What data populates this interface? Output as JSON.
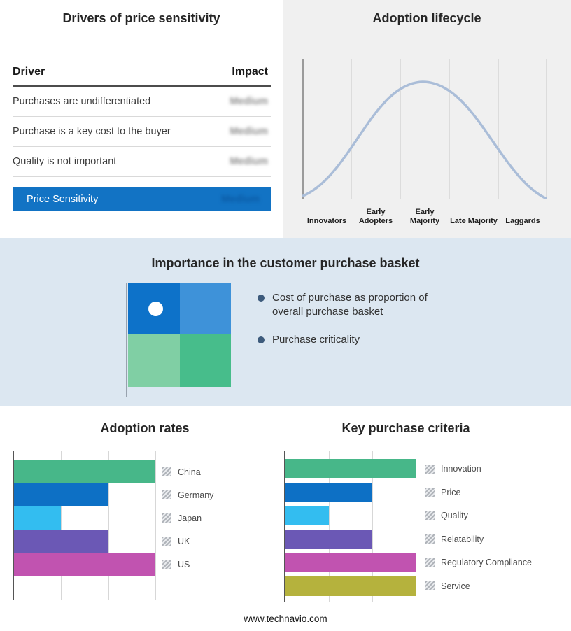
{
  "page": {
    "footer_url": "www.technavio.com"
  },
  "colors": {
    "accent_blue": "#1273c4",
    "band_background": "#dce7f1",
    "lifecycle_curve": "#aabdd8",
    "bullet_dot": "#3d5b7c"
  },
  "drivers_table": {
    "title": "Drivers of price sensitivity",
    "columns": {
      "driver": "Driver",
      "impact": "Impact"
    },
    "rows": [
      {
        "driver": "Purchases are undifferentiated",
        "impact": "Medium"
      },
      {
        "driver": "Purchase is a key cost to the buyer",
        "impact": "Medium"
      },
      {
        "driver": "Quality is not important",
        "impact": "Medium"
      }
    ],
    "summary": {
      "label": "Price Sensitivity",
      "impact": "Medium"
    }
  },
  "adoption_lifecycle": {
    "title": "Adoption lifecycle",
    "stages": [
      "Innovators",
      "Early Adopters",
      "Early Majority",
      "Late Majority",
      "Laggards"
    ]
  },
  "purchase_basket": {
    "title": "Importance in the customer purchase basket",
    "bullets": [
      "Cost of purchase as proportion of overall purchase basket",
      "Purchase criticality"
    ],
    "quadrant_colors": [
      "#0d72c9",
      "#3e92d9",
      "#80cfa4",
      "#47bd8b"
    ]
  },
  "chart_data": [
    {
      "type": "bar",
      "orientation": "horizontal",
      "title": "Adoption rates",
      "categories": [
        "China",
        "Germany",
        "Japan",
        "UK",
        "US"
      ],
      "values": [
        3,
        2,
        1,
        2,
        3
      ],
      "colors": [
        "#47b789",
        "#0d70c5",
        "#33bdf0",
        "#6b58b5",
        "#c153b0"
      ],
      "xlim": [
        0,
        3
      ],
      "grid": true,
      "legend_position": "right"
    },
    {
      "type": "bar",
      "orientation": "horizontal",
      "title": "Key purchase criteria",
      "categories": [
        "Innovation",
        "Price",
        "Quality",
        "Relatability",
        "Regulatory Compliance",
        "Service"
      ],
      "values": [
        3,
        2,
        1,
        2,
        3,
        3
      ],
      "colors": [
        "#47b789",
        "#0d70c5",
        "#33bdf0",
        "#6b58b5",
        "#c153b0",
        "#b5b23d"
      ],
      "xlim": [
        0,
        3
      ],
      "grid": true,
      "legend_position": "right"
    }
  ]
}
